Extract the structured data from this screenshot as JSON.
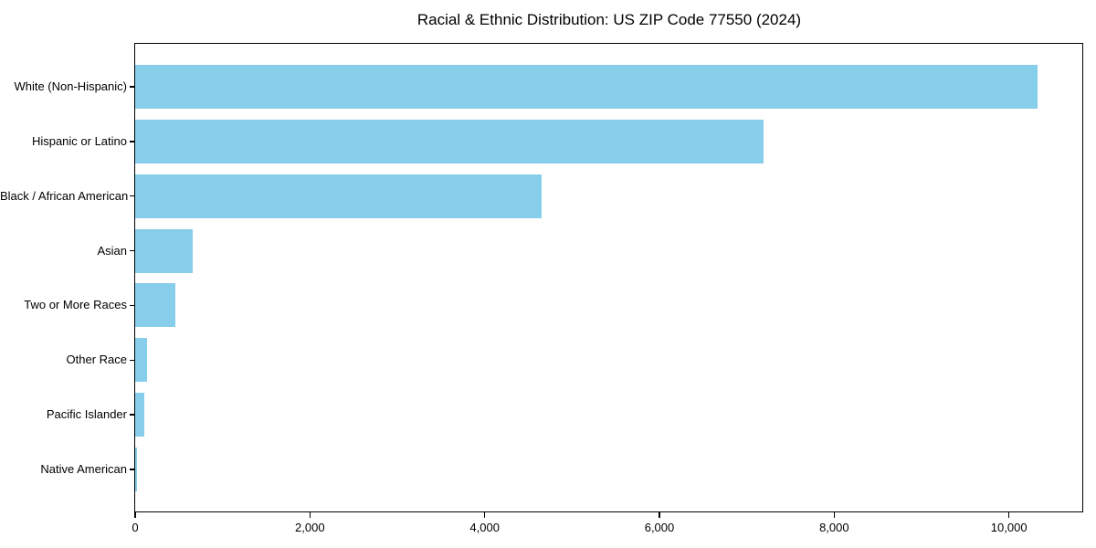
{
  "chart_data": {
    "type": "bar",
    "orientation": "horizontal",
    "title": "Racial & Ethnic Distribution: US ZIP Code 77550 (2024)",
    "categories": [
      "White (Non-Hispanic)",
      "Hispanic or Latino",
      "Black / African American",
      "Asian",
      "Two or More Races",
      "Other Race",
      "Pacific Islander",
      "Native American"
    ],
    "values": [
      10330,
      7190,
      4650,
      660,
      460,
      135,
      100,
      20
    ],
    "xlabel": "",
    "ylabel": "",
    "xlim": [
      0,
      10850
    ],
    "x_ticks": [
      0,
      2000,
      4000,
      6000,
      8000,
      10000
    ],
    "x_tick_labels": [
      "0",
      "2,000",
      "4,000",
      "6,000",
      "8,000",
      "10,000"
    ],
    "bar_color": "#87CEEB",
    "spine_color": "#000000",
    "text_color": "#000000",
    "background_color": "#ffffff",
    "grid": false,
    "legend": "none"
  }
}
